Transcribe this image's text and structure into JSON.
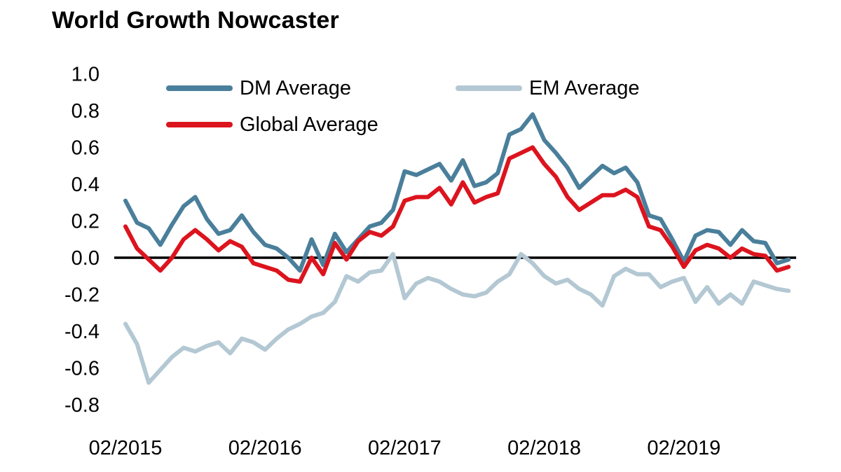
{
  "title": "World Growth Nowcaster",
  "legend": {
    "items": [
      {
        "id": "dm",
        "label": "DM Average",
        "color": "#4a7f9b"
      },
      {
        "id": "em",
        "label": "EM Average",
        "color": "#b3c8d3"
      },
      {
        "id": "global",
        "label": "Global Average",
        "color": "#dc141e"
      }
    ]
  },
  "colors": {
    "dm_line": "#4a7f9b",
    "em_line": "#b3c8d3",
    "global_line": "#dc141e",
    "zero_line": "#000000",
    "text": "#000000",
    "background": "#ffffff"
  },
  "chart_data": {
    "type": "line",
    "title": "World Growth Nowcaster",
    "x_unit": "month",
    "x_start": "02/2015",
    "x_end": "11/2019",
    "x_tick_labels": [
      "02/2015",
      "02/2016",
      "02/2017",
      "02/2018",
      "02/2019"
    ],
    "x_tick_month_indices": [
      0,
      12,
      24,
      36,
      48
    ],
    "y_ticks": [
      1.0,
      0.8,
      0.6,
      0.4,
      0.2,
      0.0,
      -0.2,
      -0.4,
      -0.6,
      -0.8
    ],
    "ylim": [
      -0.9,
      1.05
    ],
    "grid": false,
    "zero_line": true,
    "legend_position": "top-inside",
    "series": [
      {
        "id": "dm",
        "name": "DM Average",
        "color": "#4a7f9b",
        "values": [
          0.31,
          0.19,
          0.16,
          0.07,
          0.18,
          0.28,
          0.33,
          0.21,
          0.13,
          0.15,
          0.23,
          0.14,
          0.07,
          0.05,
          0.0,
          -0.07,
          0.1,
          -0.04,
          0.13,
          0.03,
          0.1,
          0.17,
          0.19,
          0.26,
          0.47,
          0.45,
          0.48,
          0.51,
          0.42,
          0.53,
          0.39,
          0.41,
          0.46,
          0.67,
          0.7,
          0.78,
          0.64,
          0.57,
          0.49,
          0.38,
          0.44,
          0.5,
          0.46,
          0.49,
          0.41,
          0.23,
          0.21,
          0.1,
          -0.02,
          0.12,
          0.15,
          0.14,
          0.07,
          0.15,
          0.09,
          0.08,
          -0.03,
          -0.01
        ]
      },
      {
        "id": "em",
        "name": "EM Average",
        "color": "#b3c8d3",
        "values": [
          -0.36,
          -0.47,
          -0.68,
          -0.61,
          -0.54,
          -0.49,
          -0.51,
          -0.48,
          -0.46,
          -0.52,
          -0.44,
          -0.46,
          -0.5,
          -0.44,
          -0.39,
          -0.36,
          -0.32,
          -0.3,
          -0.24,
          -0.1,
          -0.13,
          -0.08,
          -0.07,
          0.02,
          -0.22,
          -0.14,
          -0.11,
          -0.13,
          -0.17,
          -0.2,
          -0.21,
          -0.19,
          -0.13,
          -0.09,
          0.02,
          -0.03,
          -0.1,
          -0.14,
          -0.12,
          -0.17,
          -0.2,
          -0.26,
          -0.1,
          -0.06,
          -0.09,
          -0.09,
          -0.16,
          -0.13,
          -0.11,
          -0.24,
          -0.16,
          -0.25,
          -0.2,
          -0.25,
          -0.13,
          -0.15,
          -0.17,
          -0.18
        ]
      },
      {
        "id": "global",
        "name": "Global Average",
        "color": "#dc141e",
        "values": [
          0.17,
          0.05,
          -0.01,
          -0.07,
          0.0,
          0.1,
          0.15,
          0.1,
          0.04,
          0.09,
          0.06,
          -0.03,
          -0.05,
          -0.07,
          -0.12,
          -0.13,
          0.0,
          -0.09,
          0.08,
          -0.01,
          0.09,
          0.14,
          0.12,
          0.17,
          0.31,
          0.33,
          0.33,
          0.38,
          0.29,
          0.41,
          0.3,
          0.33,
          0.35,
          0.54,
          0.57,
          0.6,
          0.51,
          0.44,
          0.33,
          0.26,
          0.3,
          0.34,
          0.34,
          0.37,
          0.33,
          0.17,
          0.15,
          0.06,
          -0.05,
          0.04,
          0.07,
          0.05,
          0.0,
          0.05,
          0.02,
          0.01,
          -0.07,
          -0.05
        ]
      }
    ]
  }
}
